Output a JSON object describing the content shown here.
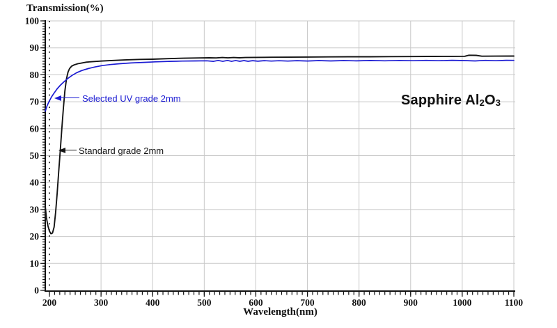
{
  "chart_data": {
    "type": "line",
    "title": "",
    "xlabel": "Wavelength(nm)",
    "ylabel": "Transmission(%)",
    "xlim": [
      192,
      1102.6
    ],
    "ylim": [
      0,
      100
    ],
    "x_ticks": [
      200,
      300,
      400,
      500,
      600,
      700,
      800,
      900,
      1000,
      1100
    ],
    "y_ticks": [
      0,
      10,
      20,
      30,
      40,
      50,
      60,
      70,
      80,
      90,
      100
    ],
    "x_minor_step": 10,
    "y_minor_step": 1,
    "grid": true,
    "grid_color": "#c8c8c8",
    "reference_line_x": 200,
    "legend_position": "inline-annotations",
    "series": [
      {
        "name": "Standard grade 2mm",
        "color": "#141414",
        "points": [
          [
            192,
            31
          ],
          [
            194,
            27
          ],
          [
            197,
            24
          ],
          [
            200,
            22
          ],
          [
            203,
            21
          ],
          [
            206,
            21.3
          ],
          [
            209,
            23.5
          ],
          [
            212,
            29
          ],
          [
            215,
            36
          ],
          [
            218,
            44
          ],
          [
            221,
            52
          ],
          [
            224,
            60
          ],
          [
            227,
            67.5
          ],
          [
            230,
            74
          ],
          [
            233,
            78.5
          ],
          [
            236,
            81
          ],
          [
            239,
            82.3
          ],
          [
            243,
            83.2
          ],
          [
            248,
            83.7
          ],
          [
            255,
            84.1
          ],
          [
            263,
            84.4
          ],
          [
            272,
            84.7
          ],
          [
            285,
            84.9
          ],
          [
            300,
            85.1
          ],
          [
            320,
            85.3
          ],
          [
            345,
            85.5
          ],
          [
            375,
            85.7
          ],
          [
            400,
            85.8
          ],
          [
            430,
            86.0
          ],
          [
            460,
            86.15
          ],
          [
            490,
            86.25
          ],
          [
            510,
            86.3
          ],
          [
            523,
            86.25
          ],
          [
            535,
            86.42
          ],
          [
            546,
            86.28
          ],
          [
            557,
            86.42
          ],
          [
            568,
            86.3
          ],
          [
            580,
            86.4
          ],
          [
            600,
            86.45
          ],
          [
            630,
            86.5
          ],
          [
            665,
            86.55
          ],
          [
            700,
            86.6
          ],
          [
            740,
            86.63
          ],
          [
            780,
            86.68
          ],
          [
            820,
            86.7
          ],
          [
            860,
            86.75
          ],
          [
            900,
            86.78
          ],
          [
            940,
            86.82
          ],
          [
            980,
            86.85
          ],
          [
            1005,
            86.88
          ],
          [
            1013,
            87.25
          ],
          [
            1027,
            87.2
          ],
          [
            1038,
            86.9
          ],
          [
            1065,
            86.92
          ],
          [
            1100,
            86.95
          ]
        ]
      },
      {
        "name": "Selected UV grade 2mm",
        "color": "#1b1bd3",
        "points": [
          [
            192,
            66.5
          ],
          [
            195,
            68.3
          ],
          [
            199,
            70
          ],
          [
            204,
            71.8
          ],
          [
            209,
            73.2
          ],
          [
            215,
            74.8
          ],
          [
            221,
            76.1
          ],
          [
            228,
            77.4
          ],
          [
            236,
            78.7
          ],
          [
            244,
            79.8
          ],
          [
            253,
            80.8
          ],
          [
            263,
            81.6
          ],
          [
            275,
            82.3
          ],
          [
            288,
            82.9
          ],
          [
            302,
            83.4
          ],
          [
            318,
            83.8
          ],
          [
            336,
            84.1
          ],
          [
            358,
            84.4
          ],
          [
            382,
            84.6
          ],
          [
            405,
            84.8
          ],
          [
            432,
            85.0
          ],
          [
            458,
            85.1
          ],
          [
            482,
            85.15
          ],
          [
            505,
            85.2
          ],
          [
            518,
            85.0
          ],
          [
            527,
            85.32
          ],
          [
            536,
            85.0
          ],
          [
            545,
            85.32
          ],
          [
            553,
            85.0
          ],
          [
            561,
            85.3
          ],
          [
            569,
            85.02
          ],
          [
            577,
            85.28
          ],
          [
            585,
            85.02
          ],
          [
            594,
            85.25
          ],
          [
            604,
            85.05
          ],
          [
            616,
            85.25
          ],
          [
            630,
            85.08
          ],
          [
            645,
            85.22
          ],
          [
            662,
            85.1
          ],
          [
            680,
            85.24
          ],
          [
            700,
            85.12
          ],
          [
            722,
            85.26
          ],
          [
            745,
            85.15
          ],
          [
            770,
            85.28
          ],
          [
            795,
            85.18
          ],
          [
            822,
            85.3
          ],
          [
            850,
            85.2
          ],
          [
            878,
            85.32
          ],
          [
            905,
            85.22
          ],
          [
            930,
            85.35
          ],
          [
            955,
            85.22
          ],
          [
            980,
            85.38
          ],
          [
            1005,
            85.28
          ],
          [
            1025,
            85.15
          ],
          [
            1045,
            85.35
          ],
          [
            1065,
            85.22
          ],
          [
            1085,
            85.38
          ],
          [
            1100,
            85.35
          ]
        ]
      }
    ]
  },
  "annotations": {
    "uv_label": "Selected UV grade 2mm",
    "standard_label": "Standard grade 2mm",
    "material": {
      "prefix": "Sapphire Al",
      "sub1": "2",
      "mid": "O",
      "sub2": "3"
    }
  },
  "colors": {
    "curve_standard": "#141414",
    "curve_uv": "#1b1bd3",
    "grid": "#c8c8c8",
    "axis": "#111111"
  }
}
